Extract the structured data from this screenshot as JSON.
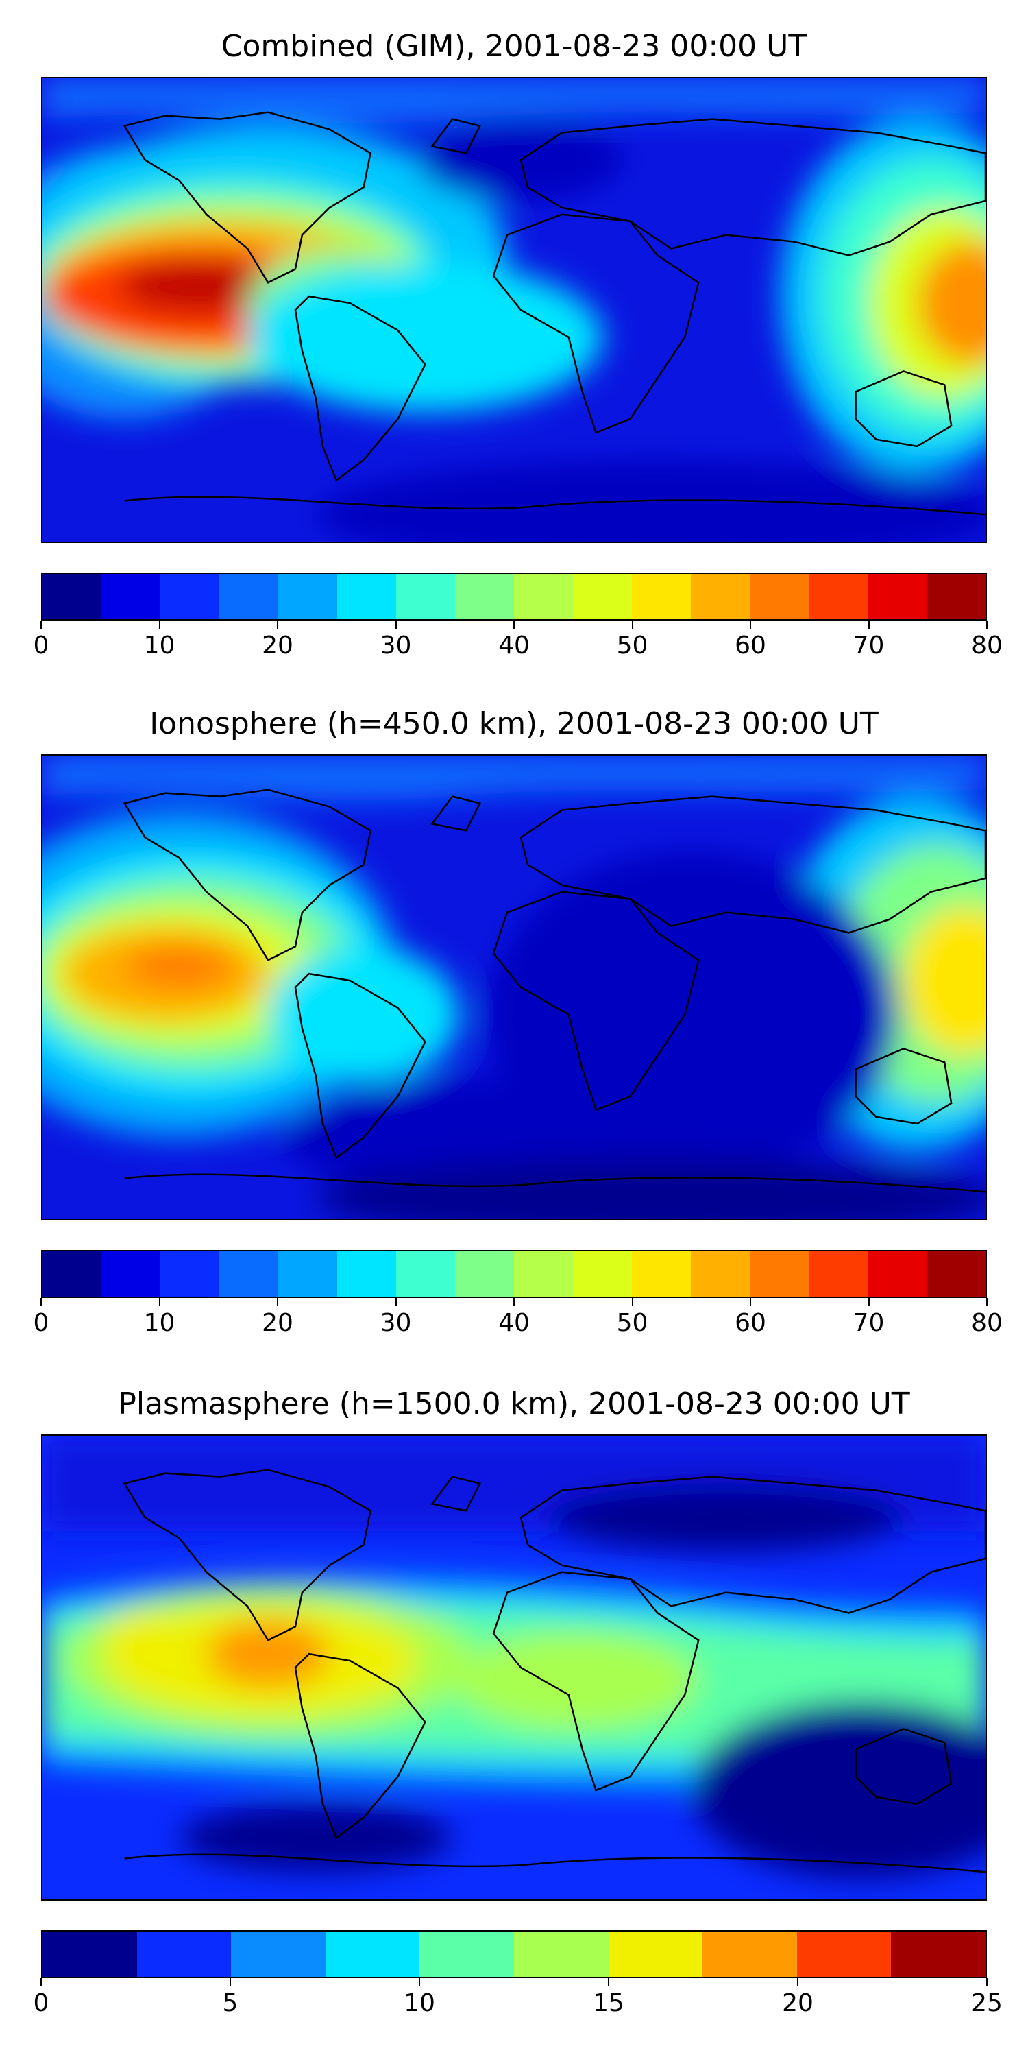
{
  "panels": [
    {
      "title": "Combined (GIM), 2001-08-23 00:00 UT",
      "base_color": "#0a16e0",
      "colorbar_colors": [
        "#00008f",
        "#0000e6",
        "#0a2cff",
        "#0a6cff",
        "#00a6ff",
        "#00e5ff",
        "#3dffd0",
        "#7dff8a",
        "#b5ff4a",
        "#dcff1a",
        "#ffe600",
        "#ffb000",
        "#ff7a00",
        "#ff3c00",
        "#e60000",
        "#a00000"
      ],
      "ticks": [
        "0",
        "10",
        "20",
        "30",
        "40",
        "50",
        "60",
        "70",
        "80"
      ]
    },
    {
      "title": "Ionosphere  (h=450.0 km), 2001-08-23 00:00 UT",
      "base_color": "#0a16e0",
      "colorbar_colors": [
        "#00008f",
        "#0000e6",
        "#0a2cff",
        "#0a6cff",
        "#00a6ff",
        "#00e5ff",
        "#3dffd0",
        "#7dff8a",
        "#b5ff4a",
        "#dcff1a",
        "#ffe600",
        "#ffb000",
        "#ff7a00",
        "#ff3c00",
        "#e60000",
        "#a00000"
      ],
      "ticks": [
        "0",
        "10",
        "20",
        "30",
        "40",
        "50",
        "60",
        "70",
        "80"
      ]
    },
    {
      "title": "Plasmasphere (h=1500.0 km), 2001-08-23 00:00 UT",
      "base_color": "#0a2cff",
      "colorbar_colors": [
        "#00008f",
        "#0a2cff",
        "#0a8cff",
        "#00e5ff",
        "#5affa8",
        "#a8ff50",
        "#f0f000",
        "#ff9a00",
        "#ff3c00",
        "#a00000"
      ],
      "ticks": [
        "0",
        "5",
        "10",
        "15",
        "20",
        "25"
      ]
    }
  ]
}
